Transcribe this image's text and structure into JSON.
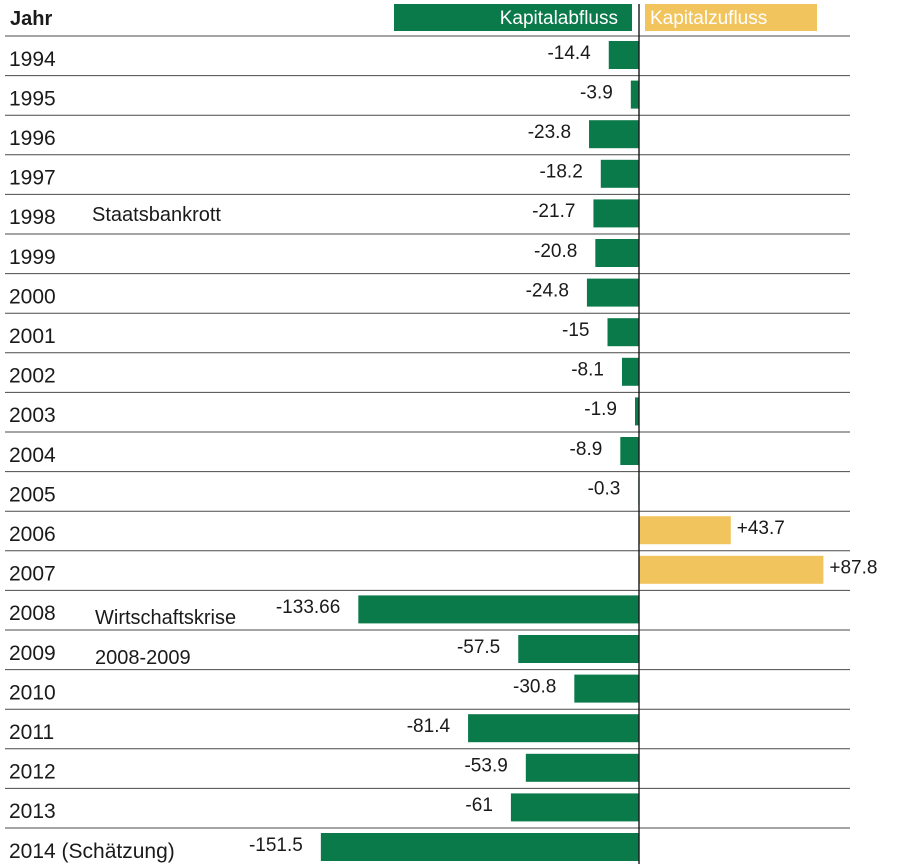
{
  "chart_data": {
    "type": "bar",
    "orientation": "horizontal",
    "column_header": "Jahr",
    "legend": [
      {
        "label": "Kapitalabfluss",
        "color": "#0b7a4b"
      },
      {
        "label": "Kapitalzufluss",
        "color": "#f2c45e"
      }
    ],
    "categories": [
      "1994",
      "1995",
      "1996",
      "1997",
      "1998",
      "1999",
      "2000",
      "2001",
      "2002",
      "2003",
      "2004",
      "2005",
      "2006",
      "2007",
      "2008",
      "2009",
      "2010",
      "2011",
      "2012",
      "2013",
      "2014 (Schätzung)"
    ],
    "values": [
      -14.4,
      -3.9,
      -23.8,
      -18.2,
      -21.7,
      -20.8,
      -24.8,
      -15,
      -8.1,
      -1.9,
      -8.9,
      -0.3,
      43.7,
      87.8,
      -133.66,
      -57.5,
      -30.8,
      -81.4,
      -53.9,
      -61,
      -151.5
    ],
    "value_labels": [
      "-14.4",
      "-3.9",
      "-23.8",
      "-18.2",
      "-21.7",
      "-20.8",
      "-24.8",
      "-15",
      "-8.1",
      "-1.9",
      "-8.9",
      "-0.3",
      "+43.7",
      "+87.8",
      "-133.66",
      "-57.5",
      "-30.8",
      "-81.4",
      "-53.9",
      "-61",
      "-151.5"
    ],
    "annotations": [
      {
        "category": "1998",
        "text": "Staatsbankrott"
      },
      {
        "category": "2008",
        "text": "Wirtschaftskrise"
      },
      {
        "category": "2009",
        "text": "2008-2009"
      }
    ],
    "grid": true
  }
}
